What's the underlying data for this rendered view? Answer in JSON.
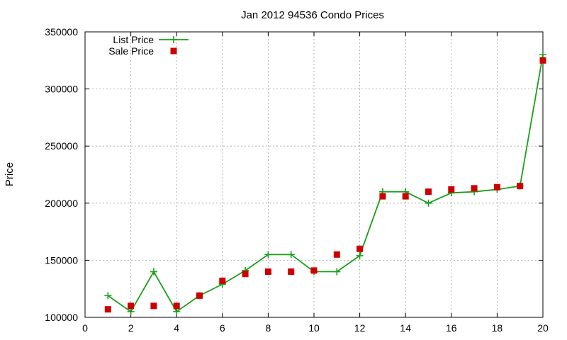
{
  "chart_data": {
    "type": "line",
    "title": "Jan 2012 94536 Condo Prices",
    "xlabel": "",
    "ylabel": "Price",
    "xlim": [
      0,
      20
    ],
    "ylim": [
      100000,
      350000
    ],
    "xticks": [
      0,
      2,
      4,
      6,
      8,
      10,
      12,
      14,
      16,
      18,
      20
    ],
    "yticks": [
      100000,
      150000,
      200000,
      250000,
      300000,
      350000
    ],
    "grid": true,
    "legend": "top-left",
    "series": [
      {
        "name": "List Price",
        "style": "line-plus",
        "color": "#1a9e1a",
        "x": [
          1,
          2,
          3,
          4,
          5,
          6,
          7,
          8,
          9,
          10,
          11,
          12,
          13,
          14,
          15,
          16,
          17,
          18,
          19,
          20
        ],
        "y": [
          119000,
          105000,
          140000,
          105000,
          119000,
          129000,
          141000,
          155000,
          155000,
          140000,
          140000,
          154000,
          210000,
          210000,
          200000,
          209000,
          210000,
          212000,
          215000,
          330000
        ]
      },
      {
        "name": "Sale Price",
        "style": "square",
        "color": "#cc0000",
        "x": [
          1,
          2,
          3,
          4,
          5,
          6,
          7,
          8,
          9,
          10,
          11,
          12,
          13,
          14,
          15,
          16,
          17,
          18,
          19,
          20
        ],
        "y": [
          107000,
          110000,
          110000,
          110000,
          119000,
          132000,
          138000,
          140000,
          140000,
          141000,
          155000,
          160000,
          206000,
          206000,
          210000,
          212000,
          213000,
          214000,
          215000,
          325000
        ]
      }
    ]
  }
}
